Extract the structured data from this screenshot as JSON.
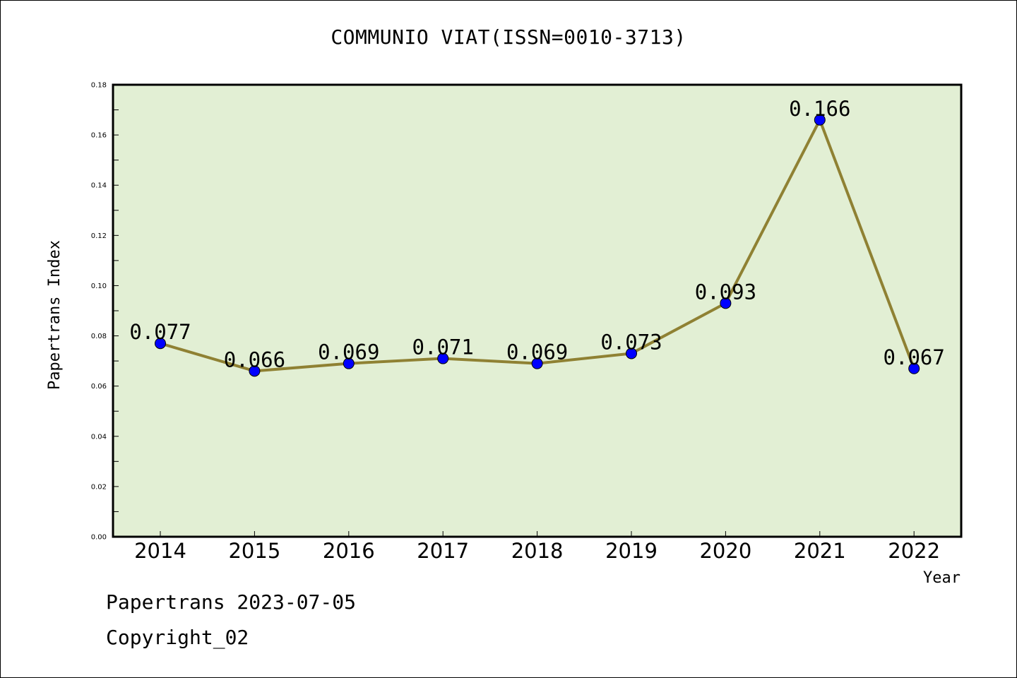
{
  "chart_data": {
    "type": "line",
    "title": "COMMUNIO VIAT(ISSN=0010-3713)",
    "xlabel": "Year",
    "ylabel": "Papertrans Index",
    "categories": [
      "2014",
      "2015",
      "2016",
      "2017",
      "2018",
      "2019",
      "2020",
      "2021",
      "2022"
    ],
    "values": [
      0.077,
      0.066,
      0.069,
      0.071,
      0.069,
      0.073,
      0.093,
      0.166,
      0.067
    ],
    "data_labels": [
      "0.077",
      "0.066",
      "0.069",
      "0.071",
      "0.069",
      "0.073",
      "0.093",
      "0.166",
      "0.067"
    ],
    "ylim": [
      0,
      0.18
    ],
    "yticks": [
      "0.00",
      "0.02",
      "0.04",
      "0.06",
      "0.08",
      "0.10",
      "0.12",
      "0.14",
      "0.16",
      "0.18"
    ],
    "grid": false,
    "colors": {
      "plot_background": "#e2efd4",
      "line": "#8f8133",
      "marker": "#0000ff"
    }
  },
  "footer": {
    "line1": "Papertrans 2023-07-05",
    "line2": "Copyright_02"
  }
}
